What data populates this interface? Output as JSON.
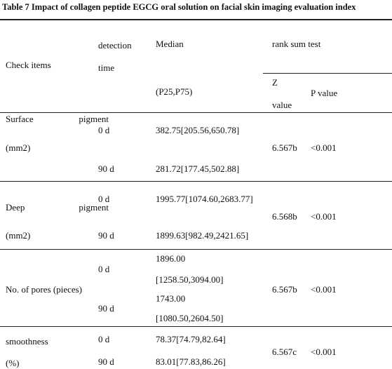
{
  "title": "Table 7 Impact of collagen peptide EGCG oral solution on facial skin imaging evaluation index",
  "header": {
    "check_items": "Check items",
    "detection_time": [
      "detection",
      "time"
    ],
    "median": "Median",
    "rank_sum_test": "rank sum test",
    "p25_p75": "(P25,P75)",
    "z_value": [
      "Z",
      "value"
    ],
    "p_value": "P value"
  },
  "rows": [
    {
      "item": [
        "Surface pigment",
        "(mm2)"
      ],
      "times": [
        "0 d",
        "90 d"
      ],
      "medians": [
        [
          "382.75[205.56,650.78]"
        ],
        [
          "281.72[177.45,502.88]"
        ]
      ],
      "z": "6.567b",
      "p": "<0.001"
    },
    {
      "item": [
        "Deep pigment",
        "(mm2)"
      ],
      "times": [
        "0 d",
        "90 d"
      ],
      "medians": [
        [
          "1995.77[1074.60,2683.77]"
        ],
        [
          "1899.63[982.49,2421.65]"
        ]
      ],
      "z": "6.568b",
      "p": "<0.001"
    },
    {
      "item": [
        "No. of pores (pieces)"
      ],
      "times": [
        "0 d",
        "90 d"
      ],
      "medians": [
        [
          "1896.00",
          "[1258.50,3094.00]"
        ],
        [
          "1743.00",
          "[1080.50,2604.50]"
        ]
      ],
      "z": "6.567b",
      "p": "<0.001"
    },
    {
      "item": [
        "smoothness",
        "(%)"
      ],
      "times": [
        "0 d",
        "90 d"
      ],
      "medians": [
        [
          "78.37[74.79,82.64]"
        ],
        [
          "83.01[77.83,86.26]"
        ]
      ],
      "z": "6.567c",
      "p": "<0.001"
    }
  ]
}
